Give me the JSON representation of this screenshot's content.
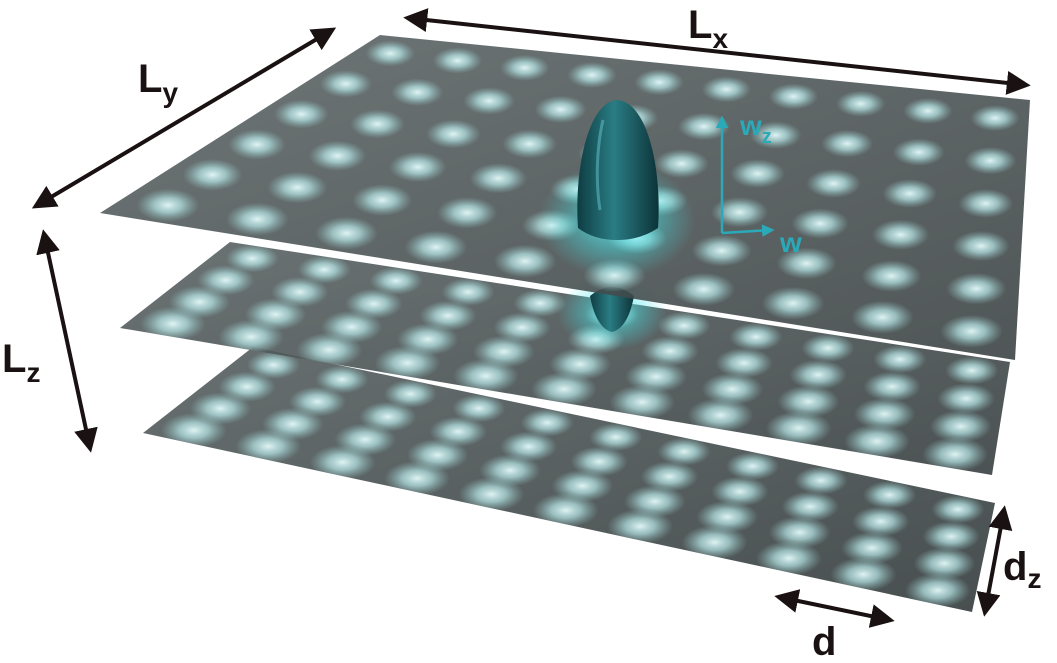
{
  "diagram": {
    "labels": {
      "Lx": {
        "main": "L",
        "sub": "x"
      },
      "Ly": {
        "main": "L",
        "sub": "y"
      },
      "Lz": {
        "main": "L",
        "sub": "z"
      },
      "dz": {
        "main": "d",
        "sub": "z"
      },
      "d": {
        "main": "d"
      },
      "wz": {
        "main": "w",
        "sub": "z"
      },
      "w": {
        "main": "w"
      }
    },
    "colors": {
      "sheet": "#474f50",
      "spot": "#c8f2f2",
      "particle": "#1e6a72",
      "glow": "#43e3e8",
      "arrow_dark": "#1a1212",
      "arrow_cyan": "#2aaab8"
    }
  }
}
